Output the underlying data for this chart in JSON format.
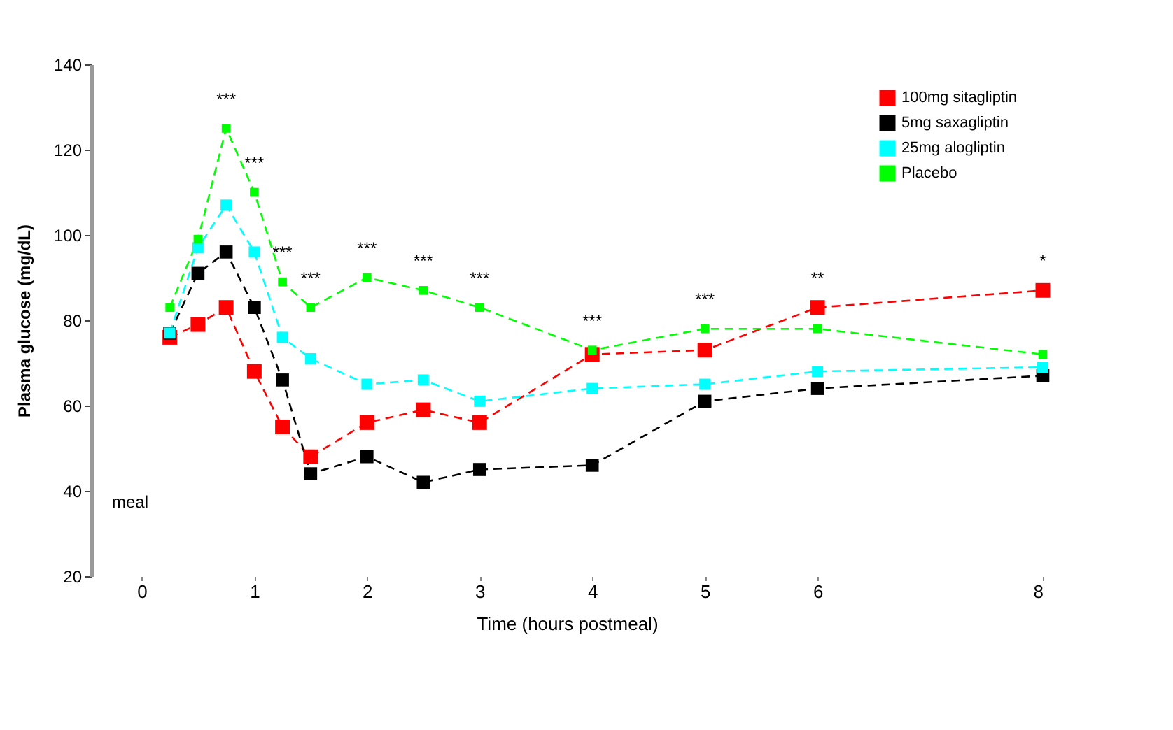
{
  "chart_data": {
    "type": "line",
    "xlabel": "Time (hours postmeal)",
    "ylabel": "Plasma glucose (mg/dL)",
    "xlim": [
      -0.45,
      8
    ],
    "xticks": [
      0,
      1,
      2,
      3,
      4,
      5,
      6,
      8
    ],
    "line_style": "dashed",
    "ylim": [
      20,
      140
    ],
    "yticks": [
      20,
      40,
      60,
      80,
      100,
      120,
      140
    ],
    "x": [
      0.25,
      0.5,
      0.75,
      1,
      1.25,
      1.5,
      2,
      2.5,
      3,
      4,
      5,
      6,
      8
    ],
    "series": [
      {
        "name": "100mg sitagliptin",
        "color": "#ff0000",
        "values": [
          76,
          79,
          83,
          68,
          55,
          48,
          56,
          59,
          56,
          72,
          73,
          83,
          87
        ]
      },
      {
        "name": "5mg saxagliptin",
        "color": "#000000",
        "values": [
          77,
          91,
          96,
          83,
          66,
          44,
          48,
          42,
          45,
          46,
          61,
          64,
          67
        ]
      },
      {
        "name": "25mg alogliptin",
        "color": "#00ffff",
        "values": [
          77,
          97,
          107,
          96,
          76,
          71,
          65,
          66,
          61,
          64,
          65,
          68,
          69
        ]
      },
      {
        "name": "Placebo",
        "color": "#00ff00",
        "values": [
          83,
          99,
          125,
          110,
          89,
          83,
          90,
          87,
          83,
          73,
          78,
          78,
          72
        ]
      }
    ],
    "marker": "square",
    "legend": "top right",
    "grid": false,
    "annotations": [
      {
        "text": "***",
        "x": 0.75,
        "y": 125
      },
      {
        "text": "***",
        "x": 1,
        "y": 110
      },
      {
        "text": "***",
        "x": 1.25,
        "y": 89
      },
      {
        "text": "***",
        "x": 1.5,
        "y": 83
      },
      {
        "text": "***",
        "x": 2,
        "y": 90
      },
      {
        "text": "***",
        "x": 2.5,
        "y": 87
      },
      {
        "text": "***",
        "x": 3,
        "y": 83
      },
      {
        "text": "***",
        "x": 4,
        "y": 73
      },
      {
        "text": "***",
        "x": 5,
        "y": 78
      },
      {
        "text": "**",
        "x": 6,
        "y": 83
      },
      {
        "text": "*",
        "x": 8,
        "y": 87
      },
      "meal"
    ]
  }
}
